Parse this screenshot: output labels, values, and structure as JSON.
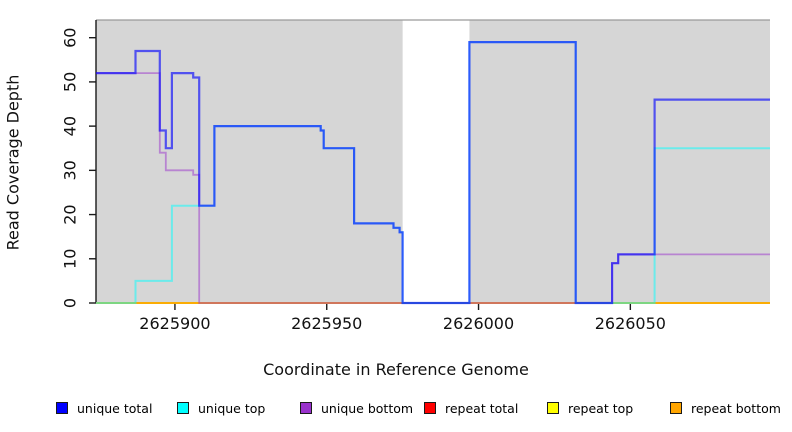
{
  "chart_data": {
    "type": "line",
    "subtype": "step-coverage-plot",
    "title": "",
    "xlabel": "Coordinate in Reference Genome",
    "ylabel": "Read Coverage Depth",
    "xlim": [
      2625874,
      2626096
    ],
    "ylim": [
      0,
      64
    ],
    "x_ticks": [
      2625900,
      2625950,
      2626000,
      2626050
    ],
    "y_ticks": [
      0,
      10,
      20,
      30,
      40,
      50,
      60
    ],
    "grid": false,
    "legend_position": "bottom",
    "panel": {
      "background_color": "#d6d6d6",
      "gap_band": {
        "x_start": 2625975,
        "x_end": 2625997,
        "color": "#ffffff"
      },
      "top_border_color": "#9a9a9a",
      "axis_color": "#1a1a1a"
    },
    "series": [
      {
        "id": "unique_total",
        "name": "unique total",
        "legend_color": "#0000ff",
        "line_color": "#0000ff",
        "opacity": 0.62,
        "width": 2.2,
        "points": [
          [
            2625874,
            52
          ],
          [
            2625887,
            57
          ],
          [
            2625895,
            39
          ],
          [
            2625897,
            35
          ],
          [
            2625899,
            52
          ],
          [
            2625906,
            51
          ],
          [
            2625908,
            22
          ],
          [
            2625913,
            40
          ],
          [
            2625948,
            39
          ],
          [
            2625949,
            35
          ],
          [
            2625959,
            18
          ],
          [
            2625972,
            17
          ],
          [
            2625974,
            16
          ],
          [
            2625975,
            0
          ],
          [
            2625997,
            59
          ],
          [
            2626032,
            0
          ],
          [
            2626044,
            9
          ],
          [
            2626046,
            11
          ],
          [
            2626058,
            46
          ]
        ]
      },
      {
        "id": "unique_top",
        "name": "unique top",
        "legend_color": "#00ffff",
        "line_color": "#00ffff",
        "opacity": 0.5,
        "width": 2,
        "points": [
          [
            2625874,
            0
          ],
          [
            2625887,
            5
          ],
          [
            2625899,
            22
          ],
          [
            2625913,
            40
          ],
          [
            2625948,
            39
          ],
          [
            2625949,
            35
          ],
          [
            2625959,
            18
          ],
          [
            2625972,
            17
          ],
          [
            2625974,
            16
          ],
          [
            2625975,
            0
          ],
          [
            2625997,
            59
          ],
          [
            2626032,
            0
          ],
          [
            2626058,
            35
          ]
        ]
      },
      {
        "id": "unique_bottom",
        "name": "unique bottom",
        "legend_color": "#9932cc",
        "line_color": "#9932cc",
        "opacity": 0.5,
        "width": 1.8,
        "points": [
          [
            2625874,
            52
          ],
          [
            2625895,
            34
          ],
          [
            2625897,
            30
          ],
          [
            2625906,
            29
          ],
          [
            2625908,
            0
          ],
          [
            2626044,
            9
          ],
          [
            2626046,
            11
          ]
        ]
      },
      {
        "id": "repeat_total",
        "name": "repeat total",
        "legend_color": "#ff0000",
        "line_color": "#ff0000",
        "opacity": 0.55,
        "width": 1.8,
        "points": [
          [
            2625874,
            0
          ]
        ]
      },
      {
        "id": "repeat_top",
        "name": "repeat top",
        "legend_color": "#ffff00",
        "line_color": "#ffff00",
        "opacity": 0.85,
        "width": 1.8,
        "points": [
          [
            2625874,
            0
          ]
        ]
      },
      {
        "id": "repeat_bottom",
        "name": "repeat bottom",
        "legend_color": "#ffa500",
        "line_color": "#ffa500",
        "opacity": 0.9,
        "width": 1.8,
        "points": [
          [
            2625874,
            0
          ]
        ]
      }
    ],
    "draw_order": [
      "repeat_total",
      "repeat_top",
      "repeat_bottom",
      "unique_bottom",
      "unique_top",
      "unique_total"
    ]
  }
}
